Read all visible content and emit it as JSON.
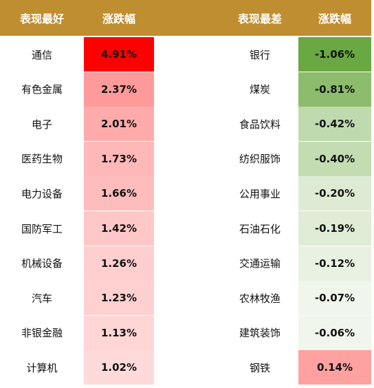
{
  "chart_data": {
    "type": "table",
    "headers": {
      "best_name": "表现最好",
      "best_change": "涨跌幅",
      "worst_name": "表现最差",
      "worst_change": "涨跌幅"
    },
    "best": [
      {
        "name": "通信",
        "change": "4.91%",
        "value": 4.91
      },
      {
        "name": "有色金属",
        "change": "2.37%",
        "value": 2.37
      },
      {
        "name": "电子",
        "change": "2.01%",
        "value": 2.01
      },
      {
        "name": "医药生物",
        "change": "1.73%",
        "value": 1.73
      },
      {
        "name": "电力设备",
        "change": "1.66%",
        "value": 1.66
      },
      {
        "name": "国防军工",
        "change": "1.42%",
        "value": 1.42
      },
      {
        "name": "机械设备",
        "change": "1.26%",
        "value": 1.26
      },
      {
        "name": "汽车",
        "change": "1.23%",
        "value": 1.23
      },
      {
        "name": "非银金融",
        "change": "1.13%",
        "value": 1.13
      },
      {
        "name": "计算机",
        "change": "1.02%",
        "value": 1.02
      }
    ],
    "worst": [
      {
        "name": "银行",
        "change": "-1.06%",
        "value": -1.06
      },
      {
        "name": "煤炭",
        "change": "-0.81%",
        "value": -0.81
      },
      {
        "name": "食品饮料",
        "change": "-0.42%",
        "value": -0.42
      },
      {
        "name": "纺织服饰",
        "change": "-0.40%",
        "value": -0.4
      },
      {
        "name": "公用事业",
        "change": "-0.20%",
        "value": -0.2
      },
      {
        "name": "石油石化",
        "change": "-0.19%",
        "value": -0.19
      },
      {
        "name": "交通运输",
        "change": "-0.12%",
        "value": -0.12
      },
      {
        "name": "农林牧渔",
        "change": "-0.07%",
        "value": -0.07
      },
      {
        "name": "建筑装饰",
        "change": "-0.06%",
        "value": -0.06
      },
      {
        "name": "钢铁",
        "change": "0.14%",
        "value": 0.14
      }
    ]
  },
  "colors": {
    "header_bg": "#bf8e30",
    "header_text": "#ffffff",
    "positive_max": "#ff0000",
    "negative_max": "#6aa842"
  }
}
